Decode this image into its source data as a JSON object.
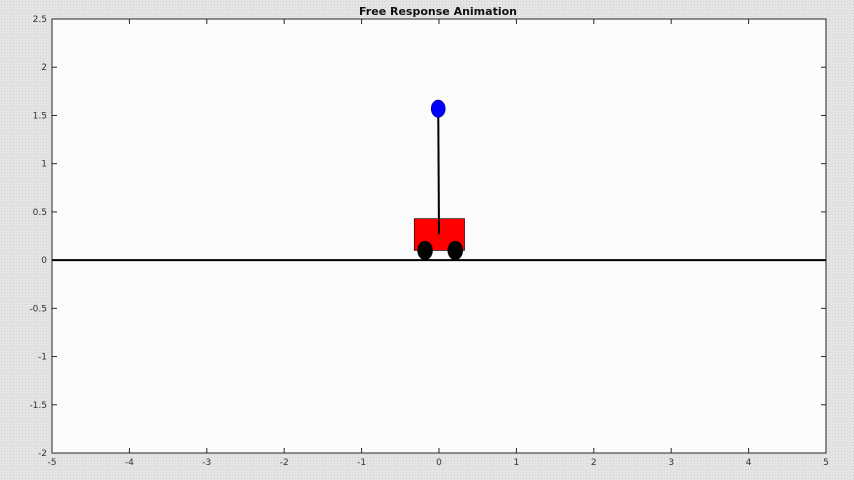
{
  "figure": {
    "title": "Free Response Animation"
  },
  "chart_data": {
    "type": "animation-frame",
    "title": "Free Response Animation",
    "xlabel": "",
    "ylabel": "",
    "xlim": [
      -5,
      5
    ],
    "ylim": [
      -2,
      2.5
    ],
    "x_ticks": [
      -5,
      -4,
      -3,
      -2,
      -1,
      0,
      1,
      2,
      3,
      4,
      5
    ],
    "y_ticks": [
      -2,
      -1.5,
      -1,
      -0.5,
      0,
      0.5,
      1,
      1.5,
      2,
      2.5
    ],
    "x_tick_labels": [
      "-5",
      "-4",
      "-3",
      "-2",
      "-1",
      "0",
      "1",
      "2",
      "3",
      "4",
      "5"
    ],
    "y_tick_labels": [
      "-2",
      "-1.5",
      "-1",
      "-0.5",
      "0",
      "0.5",
      "1",
      "1.5",
      "2",
      "2.5"
    ],
    "ground": {
      "y": 0,
      "color": "#000000"
    },
    "cart": {
      "x_range": [
        -0.32,
        0.33
      ],
      "y_range": [
        0.1,
        0.43
      ],
      "color": "#ff0000"
    },
    "wheels": [
      {
        "x": -0.18,
        "y": 0.1,
        "rx": 0.1,
        "ry": 0.1
      },
      {
        "x": 0.21,
        "y": 0.1,
        "rx": 0.1,
        "ry": 0.1
      }
    ],
    "wheel_color": "#000000",
    "pendulum": {
      "pivot": [
        0.0,
        0.27
      ],
      "bob": [
        -0.01,
        1.57
      ],
      "rod_color": "#000000",
      "bob_color": "#0000ff",
      "bob_rx": 0.09,
      "bob_ry": 0.09
    },
    "axes_color": "#262626",
    "grid": false
  }
}
